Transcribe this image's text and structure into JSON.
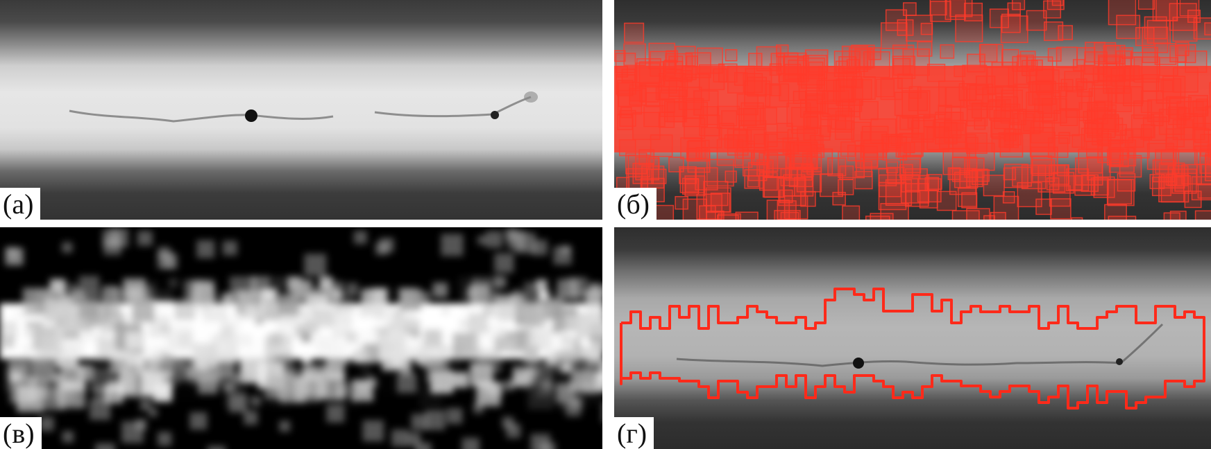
{
  "panels": [
    {
      "id": "a",
      "label": "(а)"
    },
    {
      "id": "b",
      "label": "(б)"
    },
    {
      "id": "c",
      "label": "(в)"
    },
    {
      "id": "d",
      "label": "(г)"
    }
  ],
  "colors": {
    "overlay": "#ff3b2a",
    "contour": "#ff2a1a"
  }
}
